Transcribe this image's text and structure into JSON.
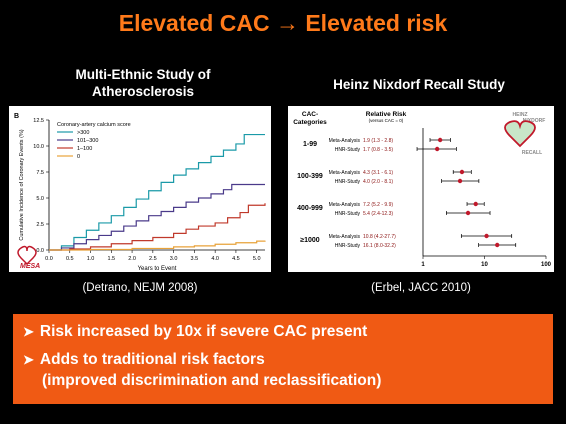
{
  "slide": {
    "title": "Elevated CAC → Elevated risk"
  },
  "left": {
    "heading_line1": "Multi-Ethnic Study of",
    "heading_line2": "Atherosclerosis",
    "citation": "(Detrano, NEJM 2008)",
    "logo_text": "MESA"
  },
  "right": {
    "heading": "Heinz Nixdorf Recall Study",
    "citation": "(Erbel, JACC 2010)",
    "logo_lines": [
      "HEINZ",
      "NIXDORF",
      "RECALL"
    ]
  },
  "bullets": [
    "Risk increased by 10x if severe CAC present",
    "Adds to traditional risk factors",
    "(improved discrimination and reclassification)"
  ],
  "colors": {
    "accent": "#ff7a1a",
    "box": "#f05a14",
    "series": [
      "#1a9aa8",
      "#4a3a8a",
      "#c0392b",
      "#e8a23a"
    ],
    "forest": "#c0192b"
  },
  "chart_data": [
    {
      "type": "line",
      "panel_letter": "B",
      "xlabel": "Years to Event",
      "ylabel": "Cumulative Incidence of Coronary Events (%)",
      "xlim": [
        0,
        5.2
      ],
      "ylim": [
        0,
        12.5
      ],
      "xticks": [
        "0.0",
        "0.5",
        "1.0",
        "1.5",
        "2.0",
        "2.5",
        "3.0",
        "3.5",
        "4.0",
        "4.5",
        "5.0"
      ],
      "yticks": [
        "0.0",
        "2.5",
        "5.0",
        "7.5",
        "10.0",
        "12.5"
      ],
      "legend_title": "Coronary-artery calcium score",
      "series": [
        {
          "name": ">300",
          "points": [
            [
              0,
              0
            ],
            [
              0.3,
              0.4
            ],
            [
              0.6,
              1.2
            ],
            [
              0.9,
              1.9
            ],
            [
              1.2,
              2.6
            ],
            [
              1.5,
              3.3
            ],
            [
              1.8,
              4.1
            ],
            [
              2.1,
              4.9
            ],
            [
              2.4,
              5.7
            ],
            [
              2.7,
              6.5
            ],
            [
              3.0,
              7.2
            ],
            [
              3.3,
              7.8
            ],
            [
              3.6,
              8.4
            ],
            [
              3.9,
              9.0
            ],
            [
              4.2,
              9.6
            ],
            [
              4.5,
              10.2
            ],
            [
              4.7,
              11.1
            ],
            [
              5.2,
              11.1
            ]
          ]
        },
        {
          "name": "101–300",
          "points": [
            [
              0,
              0
            ],
            [
              0.3,
              0.2
            ],
            [
              0.6,
              0.6
            ],
            [
              0.9,
              1.0
            ],
            [
              1.2,
              1.4
            ],
            [
              1.5,
              1.8
            ],
            [
              1.8,
              2.3
            ],
            [
              2.1,
              2.8
            ],
            [
              2.4,
              3.3
            ],
            [
              2.7,
              3.7
            ],
            [
              3.0,
              4.1
            ],
            [
              3.3,
              4.6
            ],
            [
              3.6,
              5.0
            ],
            [
              3.9,
              5.4
            ],
            [
              4.2,
              5.8
            ],
            [
              4.4,
              6.3
            ],
            [
              5.2,
              6.3
            ]
          ]
        },
        {
          "name": "1–100",
          "points": [
            [
              0,
              0
            ],
            [
              0.5,
              0.1
            ],
            [
              1.0,
              0.3
            ],
            [
              1.5,
              0.6
            ],
            [
              2.0,
              0.9
            ],
            [
              2.5,
              1.2
            ],
            [
              3.0,
              1.6
            ],
            [
              3.3,
              2.0
            ],
            [
              3.6,
              2.3
            ],
            [
              4.0,
              2.6
            ],
            [
              4.3,
              3.1
            ],
            [
              4.6,
              3.6
            ],
            [
              4.8,
              4.3
            ],
            [
              5.2,
              4.5
            ]
          ]
        },
        {
          "name": "0",
          "points": [
            [
              0,
              0
            ],
            [
              1.0,
              0.05
            ],
            [
              2.0,
              0.15
            ],
            [
              3.0,
              0.3
            ],
            [
              3.5,
              0.4
            ],
            [
              4.0,
              0.55
            ],
            [
              4.5,
              0.7
            ],
            [
              5.0,
              0.85
            ],
            [
              5.2,
              0.9
            ]
          ]
        }
      ]
    },
    {
      "type": "forest",
      "header_left": "CAC-Categories",
      "header_mid": "Relative Risk",
      "header_mid_sub": "(versus CAC = 0)",
      "xlabel": "Relative Risk",
      "xscale": "log",
      "xlim": [
        1,
        100
      ],
      "xticks": [
        "1",
        "10",
        "100"
      ],
      "groups": [
        {
          "category": "1-99",
          "rows": [
            {
              "label": "Meta-Analysis",
              "rr": 1.9,
              "lo": 1.3,
              "hi": 2.8,
              "text": "1.9 (1.3 - 2.8)"
            },
            {
              "label": "HNR-Study",
              "rr": 1.7,
              "lo": 0.8,
              "hi": 3.5,
              "text": "1.7 (0.8 - 3.5)"
            }
          ]
        },
        {
          "category": "100-399",
          "rows": [
            {
              "label": "Meta-Analysis",
              "rr": 4.3,
              "lo": 3.1,
              "hi": 6.1,
              "text": "4.3 (3.1 - 6.1)"
            },
            {
              "label": "HNR-Study",
              "rr": 4.0,
              "lo": 2.0,
              "hi": 8.1,
              "text": "4.0 (2.0 - 8.1)"
            }
          ]
        },
        {
          "category": "400-999",
          "rows": [
            {
              "label": "Meta-Analysis",
              "rr": 7.2,
              "lo": 5.2,
              "hi": 9.9,
              "text": "7.2 (5.2 - 9.9)"
            },
            {
              "label": "HNR-Study",
              "rr": 5.4,
              "lo": 2.4,
              "hi": 12.3,
              "text": "5.4 (2.4-12.3)"
            }
          ]
        },
        {
          "category": "≥1000",
          "rows": [
            {
              "label": "Meta-Analysis",
              "rr": 10.8,
              "lo": 4.2,
              "hi": 27.7,
              "text": "10.8 (4.2-27.7)"
            },
            {
              "label": "HNR-Study",
              "rr": 16.1,
              "lo": 8.0,
              "hi": 32.2,
              "text": "16.1 (8.0-32.2)"
            }
          ]
        }
      ]
    }
  ]
}
